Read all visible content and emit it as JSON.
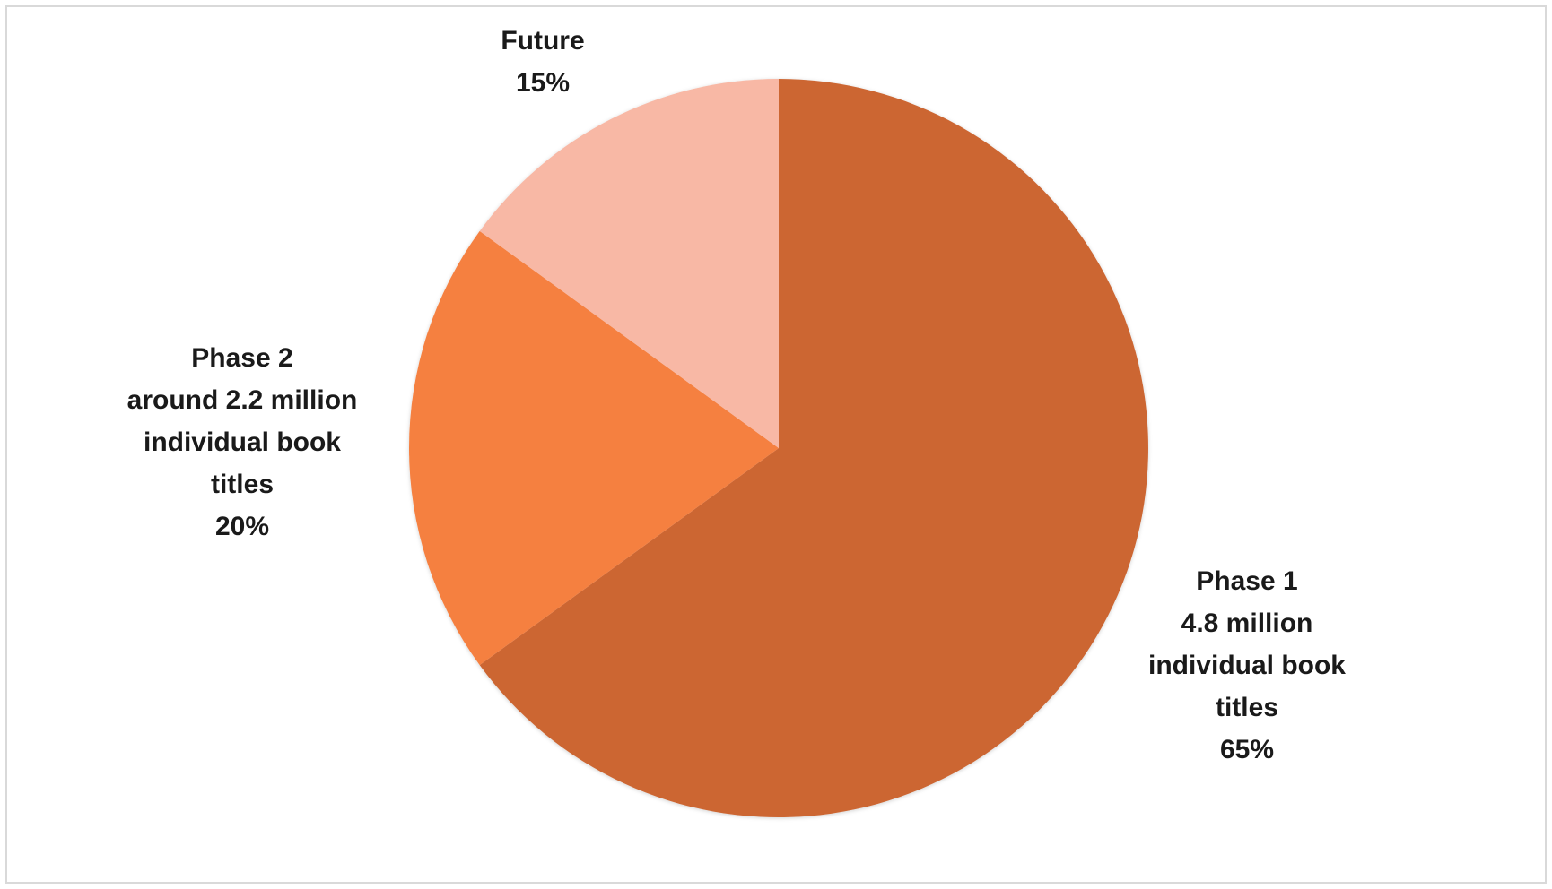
{
  "chart_data": {
    "type": "pie",
    "start_angle_deg": 0,
    "direction": "clockwise",
    "legend": "none",
    "slices": [
      {
        "name": "Phase 1",
        "value": 65,
        "label_lines": [
          "Phase 1",
          "4.8 million",
          "individual book",
          "titles",
          "65%"
        ],
        "color": "#cc6633"
      },
      {
        "name": "Phase 2",
        "value": 20,
        "label_lines": [
          "Phase 2",
          "around 2.2 million",
          "individual book",
          "titles",
          "20%"
        ],
        "color": "#f58040"
      },
      {
        "name": "Future",
        "value": 15,
        "label_lines": [
          "Future",
          "15%"
        ],
        "color": "#f8b8a5"
      }
    ]
  }
}
